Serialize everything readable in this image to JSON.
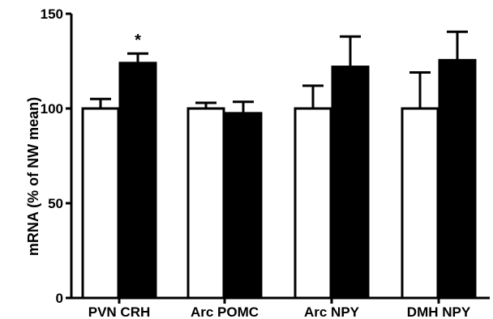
{
  "chart_data": {
    "type": "bar",
    "title": "",
    "xlabel": "",
    "ylabel": "mRNA (% of NW mean)",
    "ylim": [
      0,
      150
    ],
    "yticks": [
      0,
      50,
      100,
      150
    ],
    "grid": false,
    "legend": "none",
    "categories": [
      "PVN CRH",
      "Arc POMC",
      "Arc NPY",
      "DMH NPY"
    ],
    "series": [
      {
        "fill": "#ffffff",
        "values": [
          100,
          100,
          100,
          100
        ],
        "errors": [
          5,
          3,
          12,
          19
        ]
      },
      {
        "fill": "#000000",
        "values": [
          124,
          97.5,
          122,
          125.5
        ],
        "errors": [
          5,
          6,
          16,
          15
        ]
      }
    ],
    "annotations": [
      {
        "category": 0,
        "series": 1,
        "text": "*"
      }
    ]
  }
}
